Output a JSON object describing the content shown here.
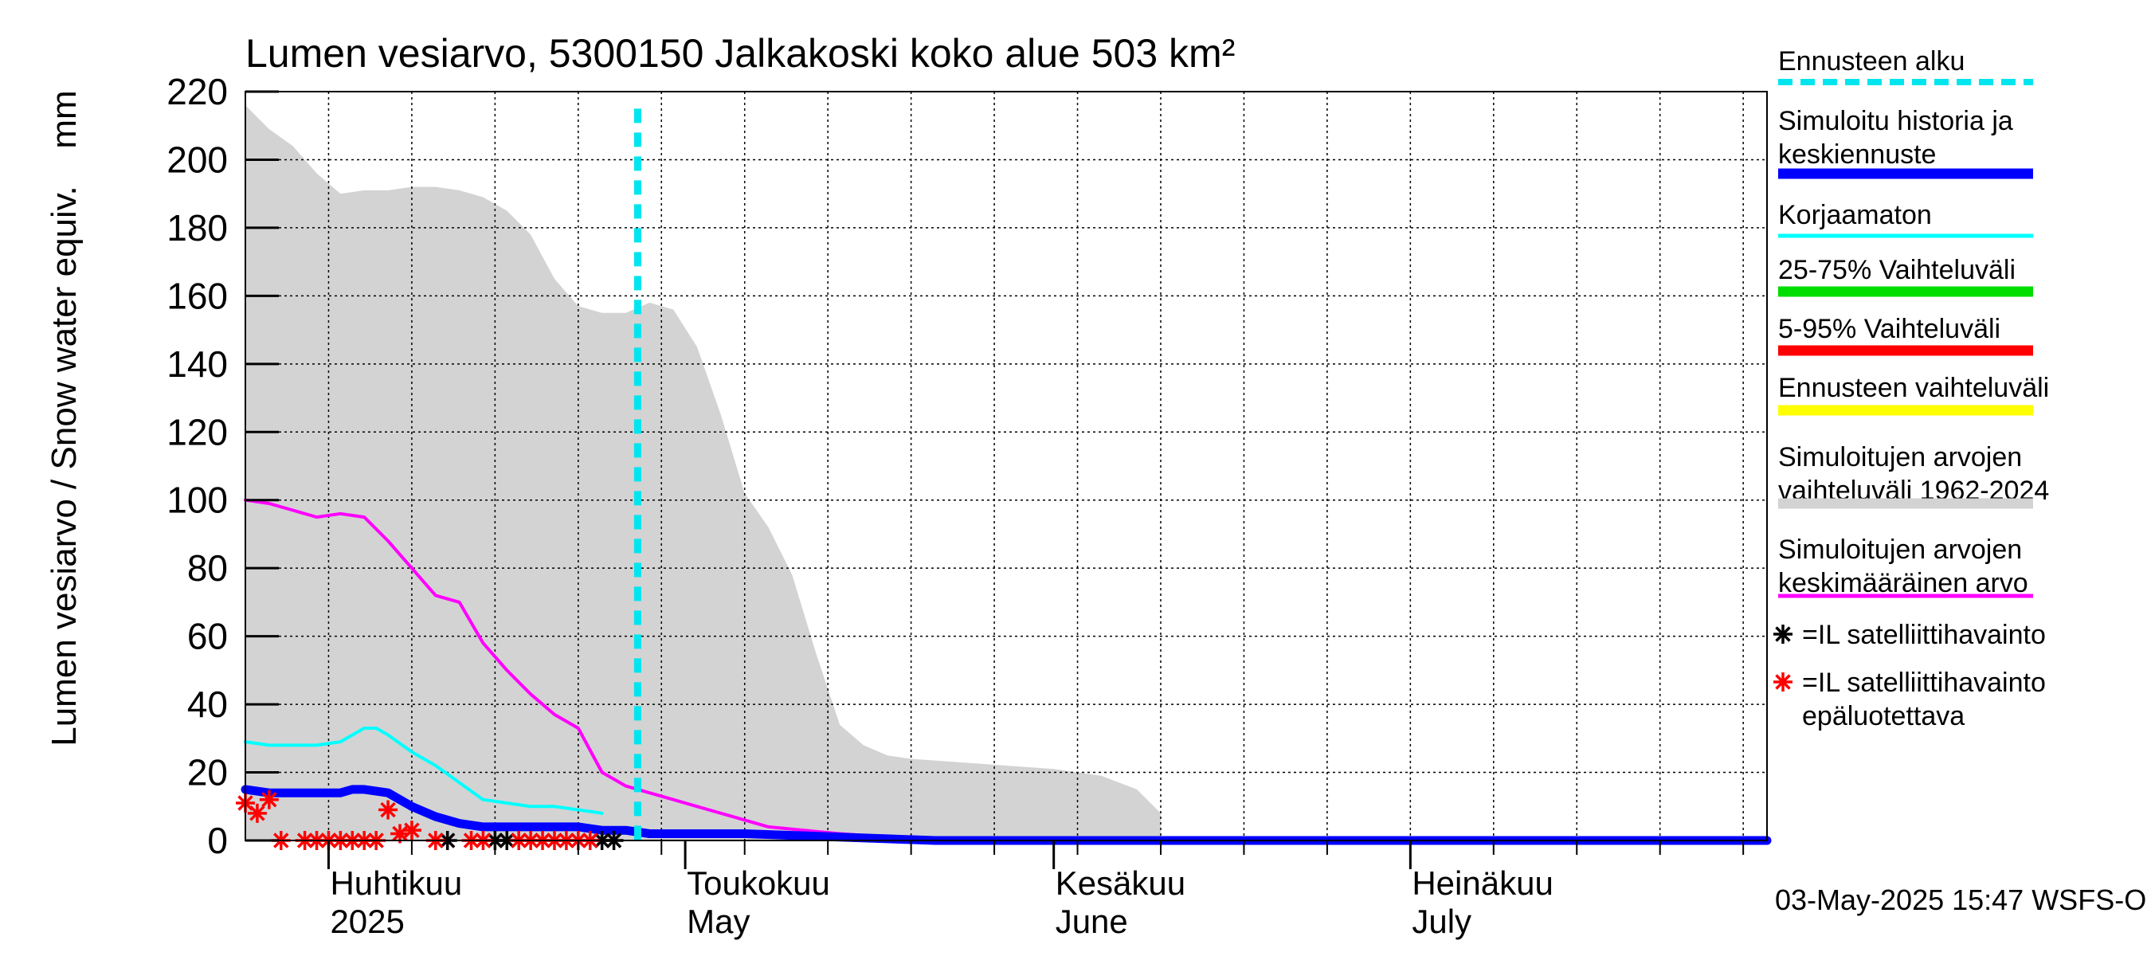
{
  "chart_data": {
    "type": "line",
    "title": "Lumen vesiarvo, 5300150 Jalkakoski koko alue 503 km²",
    "ylabel": "Lumen vesiarvo / Snow water equiv.",
    "yunit": "mm",
    "ylim": [
      0,
      220
    ],
    "yticks": [
      0,
      20,
      40,
      60,
      80,
      100,
      120,
      140,
      160,
      180,
      200,
      220
    ],
    "xlim": [
      "2025-03-25",
      "2025-07-31"
    ],
    "grid": true,
    "legend_position": "right",
    "month_labels": [
      {
        "date": "2025-04-01",
        "fi": "Huhtikuu",
        "en": "2025"
      },
      {
        "date": "2025-05-01",
        "fi": "Toukokuu",
        "en": "May"
      },
      {
        "date": "2025-06-01",
        "fi": "Kesäkuu",
        "en": "June"
      },
      {
        "date": "2025-07-01",
        "fi": "Heinäkuu",
        "en": "July"
      }
    ],
    "forecast_start": "2025-04-27",
    "series": [
      {
        "name": "Simuloitujen arvojen vaihteluväli 1962-2024",
        "kind": "band",
        "color": "#d3d3d3",
        "x": [
          "2025-03-25",
          "2025-03-27",
          "2025-03-29",
          "2025-03-31",
          "2025-04-02",
          "2025-04-04",
          "2025-04-06",
          "2025-04-08",
          "2025-04-10",
          "2025-04-12",
          "2025-04-14",
          "2025-04-16",
          "2025-04-18",
          "2025-04-20",
          "2025-04-22",
          "2025-04-24",
          "2025-04-26",
          "2025-04-28",
          "2025-04-30",
          "2025-05-02",
          "2025-05-04",
          "2025-05-06",
          "2025-05-08",
          "2025-05-10",
          "2025-05-12",
          "2025-05-14",
          "2025-05-16",
          "2025-05-18",
          "2025-05-20",
          "2025-05-24",
          "2025-05-28",
          "2025-06-01",
          "2025-06-05",
          "2025-06-08",
          "2025-06-10"
        ],
        "upper": [
          216,
          209,
          204,
          196,
          190,
          191,
          191,
          192,
          192,
          191,
          189,
          185,
          178,
          165,
          157,
          155,
          155,
          158,
          156,
          145,
          125,
          102,
          92,
          78,
          55,
          34,
          28,
          25,
          24,
          23,
          22,
          21,
          19,
          15,
          8
        ],
        "lower": [
          0,
          0,
          0,
          0,
          0,
          0,
          0,
          0,
          0,
          0,
          0,
          0,
          0,
          0,
          0,
          0,
          0,
          0,
          0,
          0,
          0,
          0,
          0,
          0,
          0,
          0,
          0,
          0,
          0,
          0,
          0,
          0,
          0,
          0,
          0
        ]
      },
      {
        "name": "Simuloitujen arvojen keskimääräinen arvo",
        "kind": "line",
        "color": "#ff00ff",
        "x": [
          "2025-03-25",
          "2025-03-27",
          "2025-03-29",
          "2025-03-31",
          "2025-04-02",
          "2025-04-04",
          "2025-04-06",
          "2025-04-08",
          "2025-04-10",
          "2025-04-12",
          "2025-04-14",
          "2025-04-16",
          "2025-04-18",
          "2025-04-20",
          "2025-04-22",
          "2025-04-24",
          "2025-04-26",
          "2025-04-28",
          "2025-04-30",
          "2025-05-02",
          "2025-05-05",
          "2025-05-08",
          "2025-05-11",
          "2025-05-14",
          "2025-05-18",
          "2025-05-22",
          "2025-05-26",
          "2025-07-31"
        ],
        "values": [
          100,
          99,
          97,
          95,
          96,
          95,
          88,
          80,
          72,
          70,
          58,
          50,
          43,
          37,
          33,
          20,
          16,
          14,
          12,
          10,
          7,
          4,
          3,
          2,
          1,
          0.5,
          0,
          0
        ]
      },
      {
        "name": "Korjaamaton",
        "kind": "line",
        "color": "#00ffff",
        "x": [
          "2025-03-25",
          "2025-03-27",
          "2025-03-29",
          "2025-03-31",
          "2025-04-02",
          "2025-04-04",
          "2025-04-05",
          "2025-04-06",
          "2025-04-08",
          "2025-04-10",
          "2025-04-12",
          "2025-04-14",
          "2025-04-16",
          "2025-04-18",
          "2025-04-20",
          "2025-04-22",
          "2025-04-24"
        ],
        "values": [
          29,
          28,
          28,
          28,
          29,
          33,
          33,
          31,
          26,
          22,
          17,
          12,
          11,
          10,
          10,
          9,
          8
        ]
      },
      {
        "name": "Simuloitu historia ja keskiennuste",
        "kind": "line",
        "color": "#0000ff",
        "x": [
          "2025-03-25",
          "2025-03-27",
          "2025-03-29",
          "2025-03-31",
          "2025-04-02",
          "2025-04-03",
          "2025-04-04",
          "2025-04-06",
          "2025-04-08",
          "2025-04-10",
          "2025-04-12",
          "2025-04-14",
          "2025-04-16",
          "2025-04-18",
          "2025-04-20",
          "2025-04-22",
          "2025-04-24",
          "2025-04-26",
          "2025-04-28",
          "2025-05-02",
          "2025-05-06",
          "2025-05-10",
          "2025-05-14",
          "2025-05-18",
          "2025-05-22",
          "2025-05-26",
          "2025-07-31"
        ],
        "values": [
          15,
          14,
          14,
          14,
          14,
          15,
          15,
          14,
          10,
          7,
          5,
          4,
          4,
          4,
          4,
          4,
          3,
          3,
          2,
          2,
          2,
          1.5,
          1,
          0.5,
          0,
          0,
          0
        ]
      },
      {
        "name": "=IL satelliittihavainto",
        "kind": "marker",
        "color": "#000000",
        "x": [
          "2025-04-11",
          "2025-04-15",
          "2025-04-16",
          "2025-04-24",
          "2025-04-25"
        ],
        "values": [
          0,
          0,
          0,
          0,
          0
        ]
      },
      {
        "name": "=IL satelliittihavainto epäluotettava",
        "kind": "marker",
        "color": "#ff0000",
        "x": [
          "2025-03-25",
          "2025-03-26",
          "2025-03-27",
          "2025-03-28",
          "2025-03-30",
          "2025-03-31",
          "2025-04-01",
          "2025-04-02",
          "2025-04-03",
          "2025-04-04",
          "2025-04-05",
          "2025-04-06",
          "2025-04-07",
          "2025-04-08",
          "2025-04-10",
          "2025-04-13",
          "2025-04-14",
          "2025-04-17",
          "2025-04-18",
          "2025-04-19",
          "2025-04-20",
          "2025-04-21",
          "2025-04-22",
          "2025-04-23"
        ],
        "values": [
          11,
          8,
          12,
          0,
          0,
          0,
          0,
          0,
          0,
          0,
          0,
          9,
          2,
          3,
          0,
          0,
          0,
          0,
          0,
          0,
          0,
          0,
          0,
          0
        ]
      }
    ],
    "legend": [
      {
        "label": "Ennusteen alku",
        "color": "#00e5ee",
        "style": "dashed"
      },
      {
        "label": "Simuloitu historia ja keskiennuste",
        "color": "#0000ff",
        "style": "thick"
      },
      {
        "label": "Korjaamaton",
        "color": "#00ffff",
        "style": "thin"
      },
      {
        "label": "25-75% Vaihteluväli",
        "color": "#00dd00",
        "style": "thick"
      },
      {
        "label": "5-95% Vaihteluväli",
        "color": "#ff0000",
        "style": "thick"
      },
      {
        "label": "Ennusteen vaihteluväli",
        "color": "#ffff00",
        "style": "thick"
      },
      {
        "label": "Simuloitujen arvojen vaihteluväli 1962-2024",
        "color": "#d3d3d3",
        "style": "thick"
      },
      {
        "label": "Simuloitujen arvojen keskimääräinen arvo",
        "color": "#ff00ff",
        "style": "thin"
      },
      {
        "label": "=IL satelliittihavainto",
        "color": "#000000",
        "style": "marker"
      },
      {
        "label": "=IL satelliittihavainto epäluotettava",
        "color": "#ff0000",
        "style": "marker"
      }
    ]
  },
  "legend_display": [
    [
      "Ennusteen alku"
    ],
    [
      "Simuloitu historia ja",
      "keskiennuste"
    ],
    [
      "Korjaamaton"
    ],
    [
      "25-75% Vaihteluväli"
    ],
    [
      "5-95% Vaihteluväli"
    ],
    [
      "Ennusteen vaihteluväli"
    ],
    [
      "Simuloitujen arvojen",
      "vaihteluväli 1962-2024"
    ],
    [
      "Simuloitujen arvojen",
      "keskimääräinen arvo"
    ],
    [
      "=IL satelliittihavainto"
    ],
    [
      "=IL satelliittihavainto",
      "epäluotettava"
    ]
  ],
  "footer": "03-May-2025 15:47 WSFS-O"
}
